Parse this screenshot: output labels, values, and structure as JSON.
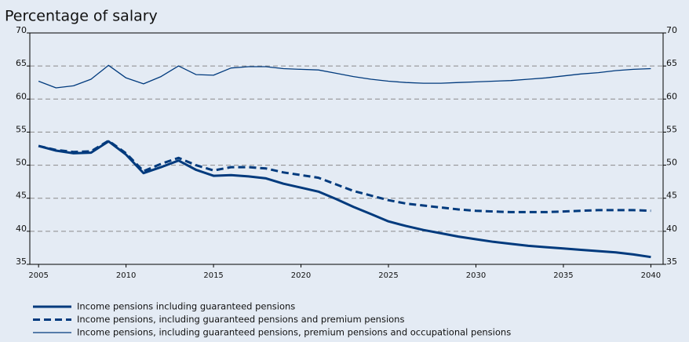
{
  "chart_data": {
    "type": "line",
    "title": "Percentage of salary",
    "x": [
      2005,
      2006,
      2007,
      2008,
      2009,
      2010,
      2011,
      2012,
      2013,
      2014,
      2015,
      2016,
      2017,
      2018,
      2019,
      2020,
      2021,
      2022,
      2023,
      2024,
      2025,
      2026,
      2027,
      2028,
      2029,
      2030,
      2031,
      2032,
      2033,
      2034,
      2035,
      2036,
      2037,
      2038,
      2039,
      2040
    ],
    "series": [
      {
        "name": "Income pensions including guaranteed pensions",
        "color": "#003a7d",
        "line_style": "solid",
        "line_width": 3,
        "values": [
          52.9,
          52.2,
          51.8,
          51.9,
          53.6,
          51.6,
          48.8,
          49.7,
          50.7,
          49.3,
          48.4,
          48.5,
          48.3,
          48.0,
          47.2,
          46.6,
          46.0,
          44.9,
          43.7,
          42.6,
          41.5,
          40.8,
          40.2,
          39.7,
          39.2,
          38.8,
          38.4,
          38.1,
          37.8,
          37.6,
          37.4,
          37.2,
          37.0,
          36.8,
          36.5,
          36.1
        ]
      },
      {
        "name": "Income pensions, including guaranteed pensions and premium pensions",
        "color": "#003a7d",
        "line_style": "dashed",
        "line_width": 3,
        "values": [
          52.9,
          52.3,
          52.0,
          52.1,
          53.7,
          51.8,
          49.1,
          50.2,
          51.1,
          50.0,
          49.2,
          49.7,
          49.7,
          49.5,
          48.9,
          48.5,
          48.1,
          47.1,
          46.1,
          45.4,
          44.7,
          44.2,
          43.9,
          43.6,
          43.3,
          43.1,
          43.0,
          42.9,
          42.9,
          42.9,
          43.0,
          43.1,
          43.2,
          43.2,
          43.2,
          43.1
        ]
      },
      {
        "name": "Income pensions, including guaranteed pensions, premium pensions and occupational pensions",
        "color": "#003a7d",
        "line_style": "solid",
        "line_width": 1.3,
        "values": [
          62.7,
          61.7,
          62.0,
          63.0,
          65.1,
          63.2,
          62.3,
          63.4,
          65.0,
          63.7,
          63.6,
          64.7,
          64.9,
          64.9,
          64.6,
          64.5,
          64.4,
          63.9,
          63.4,
          63.0,
          62.7,
          62.5,
          62.4,
          62.4,
          62.5,
          62.6,
          62.7,
          62.8,
          63.0,
          63.2,
          63.5,
          63.8,
          64.0,
          64.3,
          64.5,
          64.6
        ]
      }
    ],
    "xlim": [
      2004.5,
      2040.7
    ],
    "xticks": [
      2005,
      2010,
      2015,
      2020,
      2025,
      2030,
      2035,
      2040
    ],
    "ylim": [
      35,
      70
    ],
    "yticks": [
      35,
      40,
      45,
      50,
      55,
      60,
      65,
      70
    ],
    "grid": true,
    "legend": "bottom-left"
  }
}
